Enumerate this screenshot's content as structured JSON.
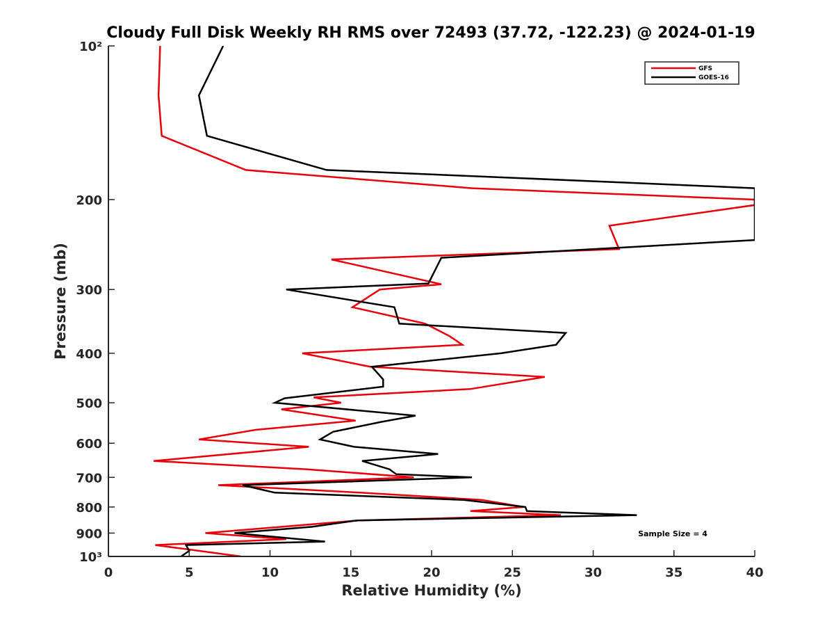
{
  "chart_data": {
    "type": "line",
    "title": "Cloudy Full Disk Weekly RH RMS over 72493 (37.72, -122.23) @ 2024-01-19",
    "xlabel": "Relative Humidity (%)",
    "ylabel": "Pressure (mb)",
    "xlim": [
      0,
      40
    ],
    "ylim": [
      100,
      1000
    ],
    "yscale": "log",
    "y_reversed": true,
    "grid": false,
    "legend_position": "top-right",
    "x_ticks": [
      0,
      5,
      10,
      15,
      20,
      25,
      30,
      35,
      40
    ],
    "x_tick_labels": [
      "0",
      "5",
      "10",
      "15",
      "20",
      "25",
      "30",
      "35",
      "40"
    ],
    "y_ticks": [
      100,
      200,
      300,
      400,
      500,
      600,
      700,
      800,
      900,
      1000
    ],
    "y_tick_labels": [
      "10²",
      "200",
      "300",
      "400",
      "500",
      "600",
      "700",
      "800",
      "900",
      "10³"
    ],
    "series": [
      {
        "name": "GFS",
        "color": "#e8000b",
        "points": [
          [
            3.2,
            100
          ],
          [
            3.1,
            125
          ],
          [
            3.3,
            150
          ],
          [
            8.5,
            175
          ],
          [
            22.5,
            190
          ],
          [
            40,
            200
          ],
          [
            40,
            205
          ],
          [
            31.0,
            225
          ],
          [
            31.6,
            250
          ],
          [
            13.8,
            262
          ],
          [
            20.6,
            293
          ],
          [
            16.8,
            300
          ],
          [
            15.1,
            325
          ],
          [
            19.6,
            350
          ],
          [
            21.1,
            370
          ],
          [
            21.9,
            385
          ],
          [
            12.0,
            400
          ],
          [
            16.2,
            425
          ],
          [
            27.0,
            445
          ],
          [
            22.4,
            470
          ],
          [
            12.7,
            488
          ],
          [
            14.4,
            500
          ],
          [
            10.7,
            515
          ],
          [
            15.3,
            542
          ],
          [
            9.1,
            565
          ],
          [
            5.6,
            590
          ],
          [
            12.4,
            610
          ],
          [
            2.8,
            650
          ],
          [
            12.3,
            675
          ],
          [
            18.9,
            700
          ],
          [
            6.8,
            725
          ],
          [
            15.6,
            750
          ],
          [
            23.1,
            775
          ],
          [
            25.7,
            800
          ],
          [
            22.4,
            815
          ],
          [
            28.0,
            830
          ],
          [
            15.5,
            850
          ],
          [
            6.0,
            900
          ],
          [
            11.0,
            925
          ],
          [
            2.9,
            950
          ],
          [
            8.2,
            1000
          ]
        ]
      },
      {
        "name": "GOES-16",
        "color": "#000000",
        "points": [
          [
            7.1,
            100
          ],
          [
            5.6,
            125
          ],
          [
            6.1,
            150
          ],
          [
            13.5,
            175
          ],
          [
            31.6,
            185
          ],
          [
            40,
            190
          ],
          [
            40,
            240
          ],
          [
            20.6,
            260
          ],
          [
            19.8,
            292
          ],
          [
            11.0,
            300
          ],
          [
            17.7,
            325
          ],
          [
            18.0,
            350
          ],
          [
            28.3,
            365
          ],
          [
            27.7,
            385
          ],
          [
            24.3,
            400
          ],
          [
            16.3,
            425
          ],
          [
            17.0,
            450
          ],
          [
            17.0,
            465
          ],
          [
            10.9,
            490
          ],
          [
            10.3,
            500
          ],
          [
            19.0,
            530
          ],
          [
            16.9,
            545
          ],
          [
            13.9,
            570
          ],
          [
            13.1,
            590
          ],
          [
            15.2,
            610
          ],
          [
            20.4,
            630
          ],
          [
            15.7,
            650
          ],
          [
            17.4,
            675
          ],
          [
            17.8,
            690
          ],
          [
            22.5,
            700
          ],
          [
            8.3,
            725
          ],
          [
            10.3,
            750
          ],
          [
            22.0,
            775
          ],
          [
            25.8,
            800
          ],
          [
            25.9,
            815
          ],
          [
            32.7,
            830
          ],
          [
            15.4,
            850
          ],
          [
            12.6,
            875
          ],
          [
            7.8,
            900
          ],
          [
            13.4,
            935
          ],
          [
            4.8,
            950
          ],
          [
            5.0,
            975
          ],
          [
            4.5,
            1000
          ]
        ]
      }
    ],
    "annotations": [
      "Sample Size = 4"
    ]
  }
}
